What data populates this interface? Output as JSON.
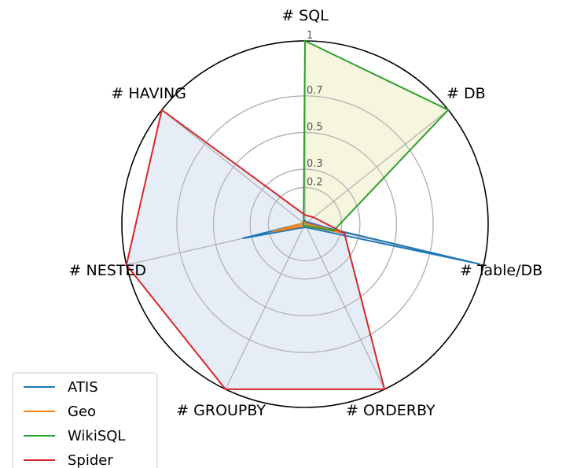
{
  "chart_data": {
    "type": "radar",
    "axes": [
      "# SQL",
      "# DB",
      "# Table/DB",
      "# ORDERBY",
      "# GROUPBY",
      "# NESTED",
      "# HAVING"
    ],
    "tick_labels": [
      "0.2",
      "0.3",
      "0.5",
      "0.7",
      "1"
    ],
    "tick_values": [
      0.2,
      0.3,
      0.5,
      0.7,
      1.0
    ],
    "rlim": [
      0,
      1
    ],
    "series": [
      {
        "name": "ATIS",
        "color": "#1f77b4",
        "values": [
          0.02,
          0.01,
          0.98,
          0.02,
          0.02,
          0.35,
          0.01
        ],
        "fill": false
      },
      {
        "name": "Geo",
        "color": "#ff7f0e",
        "values": [
          0.01,
          0.005,
          0.2,
          0.01,
          0.01,
          0.18,
          0.01
        ],
        "fill": false
      },
      {
        "name": "WikiSQL",
        "color": "#2ca02c",
        "values": [
          1.0,
          1.0,
          0.16,
          0.01,
          0.01,
          0.01,
          0.01
        ],
        "fill": "#f5f5dc"
      },
      {
        "name": "Spider",
        "color": "#d62728",
        "values": [
          0.05,
          0.06,
          0.22,
          1.0,
          1.0,
          1.0,
          1.0
        ],
        "fill": "#e3ebf5"
      }
    ],
    "extra_line": {
      "color": "#9467bd",
      "values": [
        0.01,
        0.02,
        0.23,
        0.01,
        0.01,
        0.01,
        0.01
      ]
    },
    "legend_position": "bottom-left"
  }
}
